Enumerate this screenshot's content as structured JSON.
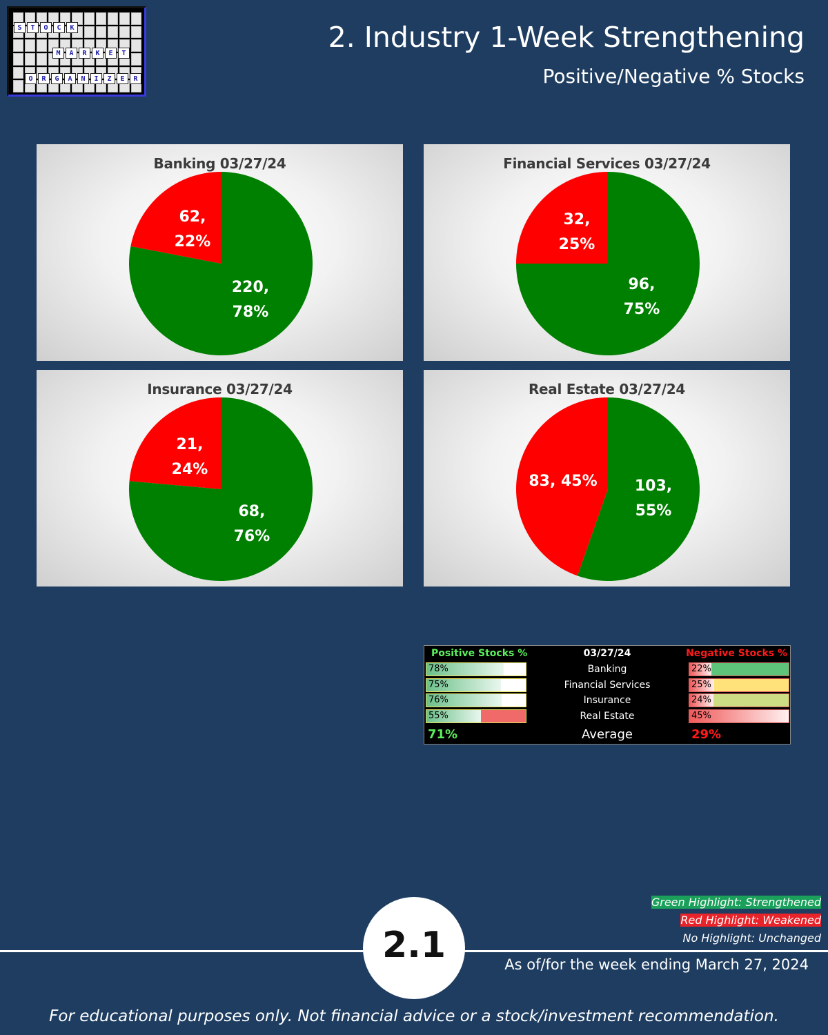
{
  "header": {
    "title": "2. Industry 1-Week Strengthening",
    "subtitle": "Positive/Negative % Stocks",
    "logo_words": [
      "STOCK",
      "MARKET",
      "ORGANIZER"
    ]
  },
  "colors": {
    "background": "#1e3d60",
    "positive": "#008000",
    "negative": "#ff0000",
    "positive_text": "#5cf05c",
    "negative_text": "#ff1a1a"
  },
  "chart_data": [
    {
      "type": "pie",
      "title": "Banking 03/27/24",
      "slices": [
        {
          "label": "Negative",
          "value": 62,
          "percent": 22,
          "display": [
            "62,",
            "22%"
          ],
          "color": "#ff0000"
        },
        {
          "label": "Positive",
          "value": 220,
          "percent": 78,
          "display": [
            "220,",
            "78%"
          ],
          "color": "#008000"
        }
      ]
    },
    {
      "type": "pie",
      "title": "Financial Services 03/27/24",
      "slices": [
        {
          "label": "Negative",
          "value": 32,
          "percent": 25,
          "display": [
            "32,",
            "25%"
          ],
          "color": "#ff0000"
        },
        {
          "label": "Positive",
          "value": 96,
          "percent": 75,
          "display": [
            "96,",
            "75%"
          ],
          "color": "#008000"
        }
      ]
    },
    {
      "type": "pie",
      "title": "Insurance 03/27/24",
      "slices": [
        {
          "label": "Negative",
          "value": 21,
          "percent": 24,
          "display": [
            "21,",
            "24%"
          ],
          "color": "#ff0000"
        },
        {
          "label": "Positive",
          "value": 68,
          "percent": 76,
          "display": [
            "68,",
            "76%"
          ],
          "color": "#008000"
        }
      ]
    },
    {
      "type": "pie",
      "title": "Real Estate 03/27/24",
      "slices": [
        {
          "label": "Negative",
          "value": 83,
          "percent": 45,
          "display": [
            "83, 45%"
          ],
          "color": "#ff0000"
        },
        {
          "label": "Positive",
          "value": 103,
          "percent": 55,
          "display": [
            "103,",
            "55%"
          ],
          "color": "#008000"
        }
      ]
    }
  ],
  "summary": {
    "positive_header": "Positive Stocks %",
    "date_header": "03/27/24",
    "negative_header": "Negative Stocks %",
    "rows": [
      {
        "industry": "Banking",
        "positive": "78%",
        "positive_value": 78,
        "negative": "22%",
        "negative_value": 22,
        "pos_status": "unchanged",
        "neg_status": "strengthened"
      },
      {
        "industry": "Financial Services",
        "positive": "75%",
        "positive_value": 75,
        "negative": "25%",
        "negative_value": 25,
        "pos_status": "unchanged",
        "neg_status": "yellow"
      },
      {
        "industry": "Insurance",
        "positive": "76%",
        "positive_value": 76,
        "negative": "24%",
        "negative_value": 24,
        "pos_status": "unchanged",
        "neg_status": "lightgreen"
      },
      {
        "industry": "Real Estate",
        "positive": "55%",
        "positive_value": 55,
        "negative": "45%",
        "negative_value": 45,
        "pos_status": "weakened",
        "neg_status": "unchanged"
      }
    ],
    "average_label": "Average",
    "average_positive": "71%",
    "average_negative": "29%"
  },
  "legend": {
    "green": "Green Highlight: Strengthened",
    "red": "Red Highlight: Weakened",
    "none": "No Highlight: Unchanged"
  },
  "footer": {
    "page_number": "2.1",
    "as_of": "As of/for the week ending March 27, 2024",
    "disclaimer": "For educational purposes only. Not financial advice or a stock/investment recommendation."
  }
}
